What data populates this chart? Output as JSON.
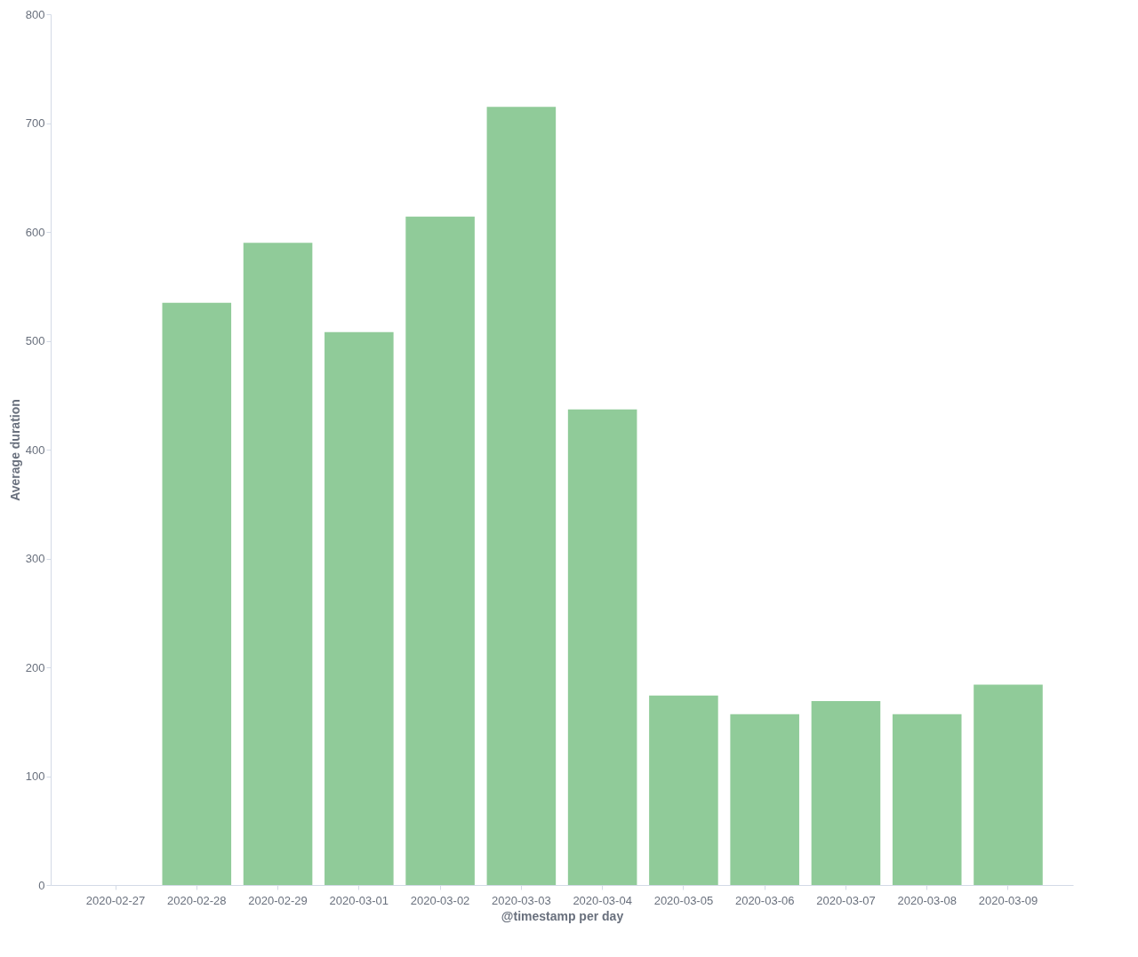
{
  "chart_data": {
    "type": "bar",
    "xlabel": "@timestamp per day",
    "ylabel": "Average duration",
    "categories": [
      "2020-02-27",
      "2020-02-28",
      "2020-02-29",
      "2020-03-01",
      "2020-03-02",
      "2020-03-03",
      "2020-03-04",
      "2020-03-05",
      "2020-03-06",
      "2020-03-07",
      "2020-03-08",
      "2020-03-09"
    ],
    "values": [
      null,
      535,
      590,
      508,
      614,
      715,
      437,
      174,
      157,
      169,
      157,
      184
    ],
    "color": "#90cb99",
    "ylim": [
      0,
      800
    ],
    "yticks": [
      0,
      100,
      200,
      300,
      400,
      500,
      600,
      700,
      800
    ],
    "grid": false
  }
}
